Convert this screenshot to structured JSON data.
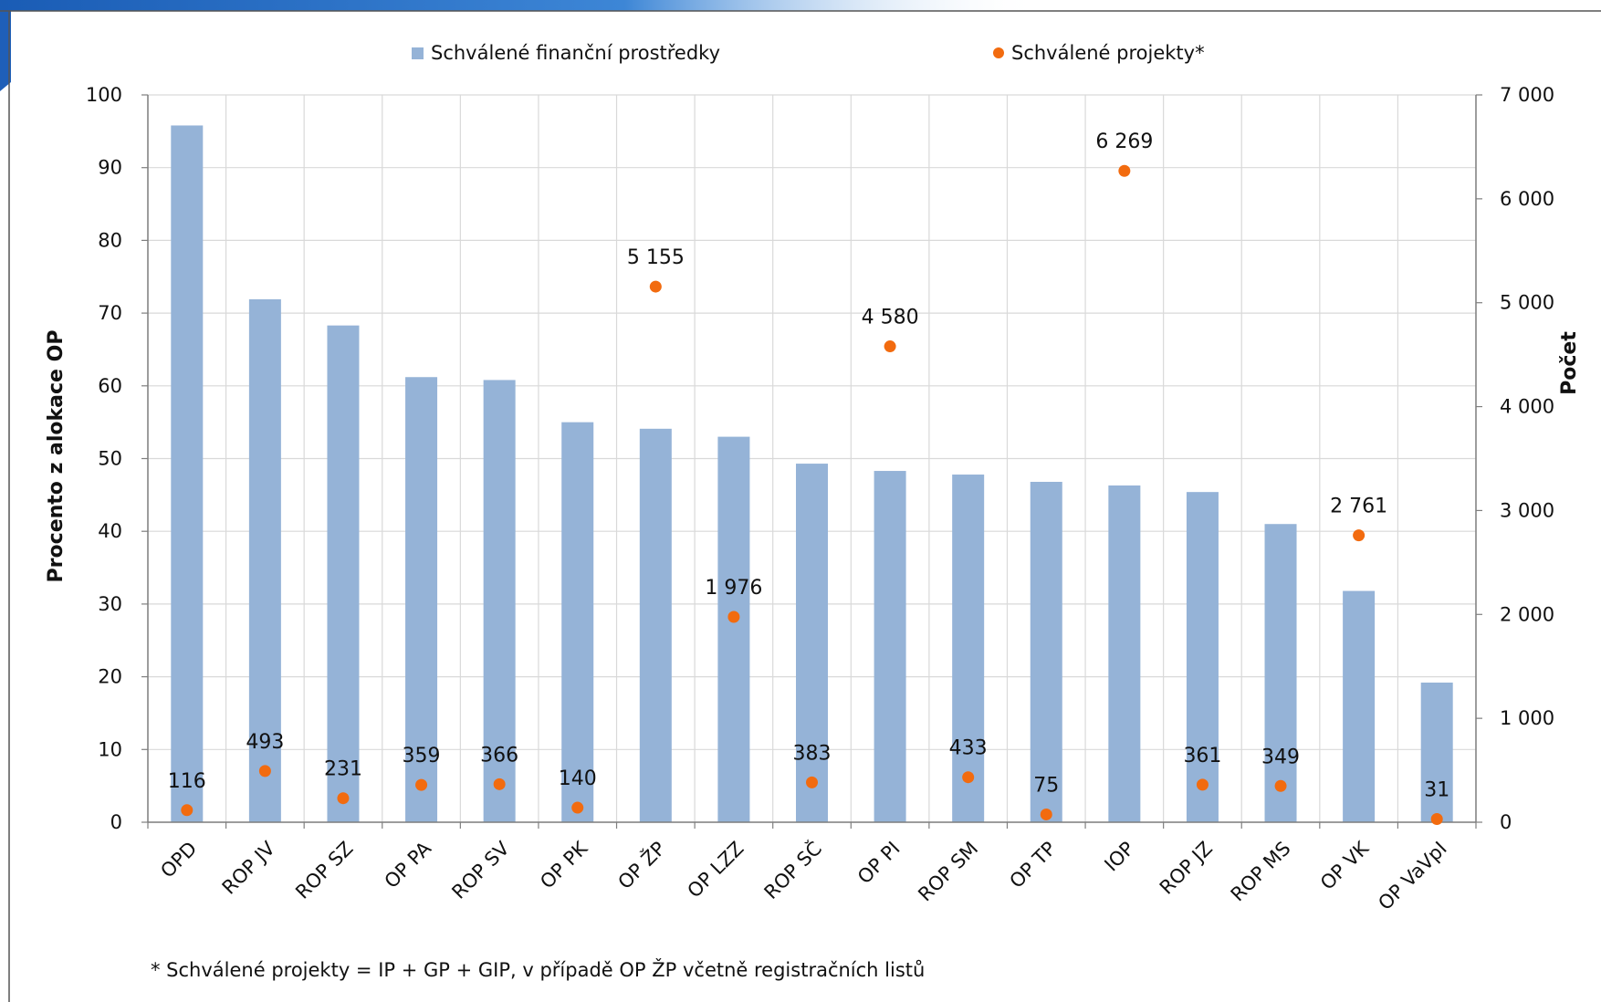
{
  "chart_data": {
    "type": "bar",
    "categories": [
      "OPD",
      "ROP JV",
      "ROP SZ",
      "OP PA",
      "ROP SV",
      "OP PK",
      "OP ŽP",
      "OP LZZ",
      "ROP SČ",
      "OP PI",
      "ROP SM",
      "OP TP",
      "IOP",
      "ROP JZ",
      "ROP MS",
      "OP VK",
      "OP VaVpI"
    ],
    "series": [
      {
        "name": "Schválené finanční prostředky",
        "type": "bar",
        "axis": "left",
        "color": "#95b3d7",
        "values": [
          95.8,
          71.9,
          68.3,
          61.2,
          60.8,
          55.0,
          54.1,
          53.0,
          49.3,
          48.3,
          47.8,
          46.8,
          46.3,
          45.4,
          41.0,
          31.8,
          19.2
        ]
      },
      {
        "name": "Schválené projekty*",
        "type": "scatter",
        "axis": "right",
        "color": "#f26b0f",
        "values": [
          116,
          493,
          231,
          359,
          366,
          140,
          5155,
          1976,
          383,
          4580,
          433,
          75,
          6269,
          361,
          349,
          2761,
          31
        ],
        "labels": [
          "116",
          "493",
          "231",
          "359",
          "366",
          "140",
          "5 155",
          "1 976",
          "383",
          "4 580",
          "433",
          "75",
          "6 269",
          "361",
          "349",
          "2 761",
          "31"
        ]
      }
    ],
    "ylabel": "Procento z alokace OP",
    "y2label": "Počet",
    "ylim": [
      0,
      100
    ],
    "y2lim": [
      0,
      7000
    ],
    "yticks": [
      "0",
      "10",
      "20",
      "30",
      "40",
      "50",
      "60",
      "70",
      "80",
      "90",
      "100"
    ],
    "y2ticks": [
      "0",
      "1 000",
      "2 000",
      "3 000",
      "4 000",
      "5 000",
      "6 000",
      "7 000"
    ],
    "grid": true,
    "legend": "top"
  },
  "legend": {
    "bar_label": "Schválené finanční prostředky",
    "dot_label": "Schválené projekty*"
  },
  "footnote": "* Schválené projekty = IP + GP + GIP, v případě OP ŽP včetně registračních listů",
  "colors": {
    "banner": "#1f5fb8",
    "grid": "#d9d9d9",
    "axis": "#7f7f7f"
  }
}
